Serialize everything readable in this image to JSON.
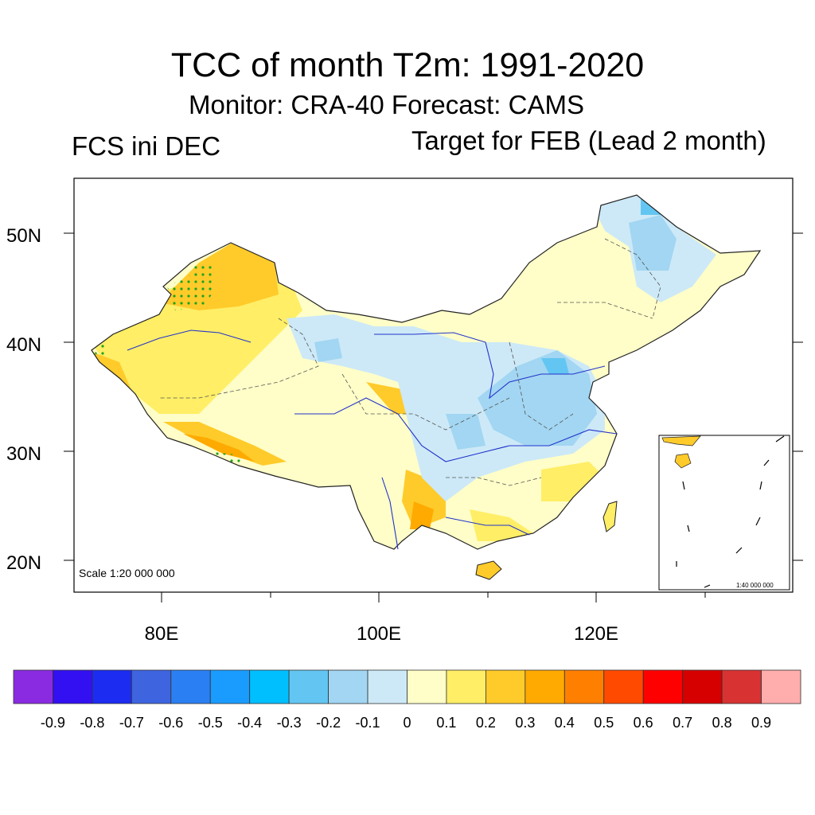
{
  "title": "TCC of month T2m: 1991-2020",
  "subtitle": "Monitor: CRA-40   Forecast: CAMS",
  "left_label": "FCS ini DEC",
  "right_label": "Target for FEB (Lead 2 month)",
  "map": {
    "scale_text": "Scale 1:20 000 000",
    "inset_scale_text": "1:40 000 000",
    "lat_labels": [
      "20N",
      "30N",
      "40N",
      "50N"
    ],
    "lon_labels": [
      "80E",
      "100E",
      "120E"
    ],
    "region": "China",
    "significance_marker": "green-dot-stipple"
  },
  "colorbar": {
    "colors": [
      "#8a2be2",
      "#3310f2",
      "#1c2cf0",
      "#3e64e0",
      "#2a7ff2",
      "#1a9cff",
      "#00bfff",
      "#63c6f2",
      "#a2d6f2",
      "#cde9f7",
      "#fffec8",
      "#ffee66",
      "#ffcb2a",
      "#ffaa00",
      "#ff7f00",
      "#ff4a00",
      "#ff0000",
      "#d60000",
      "#d83232",
      "#ffadad"
    ],
    "tick_labels": [
      "-0.9",
      "-0.8",
      "-0.7",
      "-0.6",
      "-0.5",
      "-0.4",
      "-0.3",
      "-0.2",
      "-0.1",
      "0",
      "0.1",
      "0.2",
      "0.3",
      "0.4",
      "0.5",
      "0.6",
      "0.7",
      "0.8",
      "0.9"
    ]
  }
}
